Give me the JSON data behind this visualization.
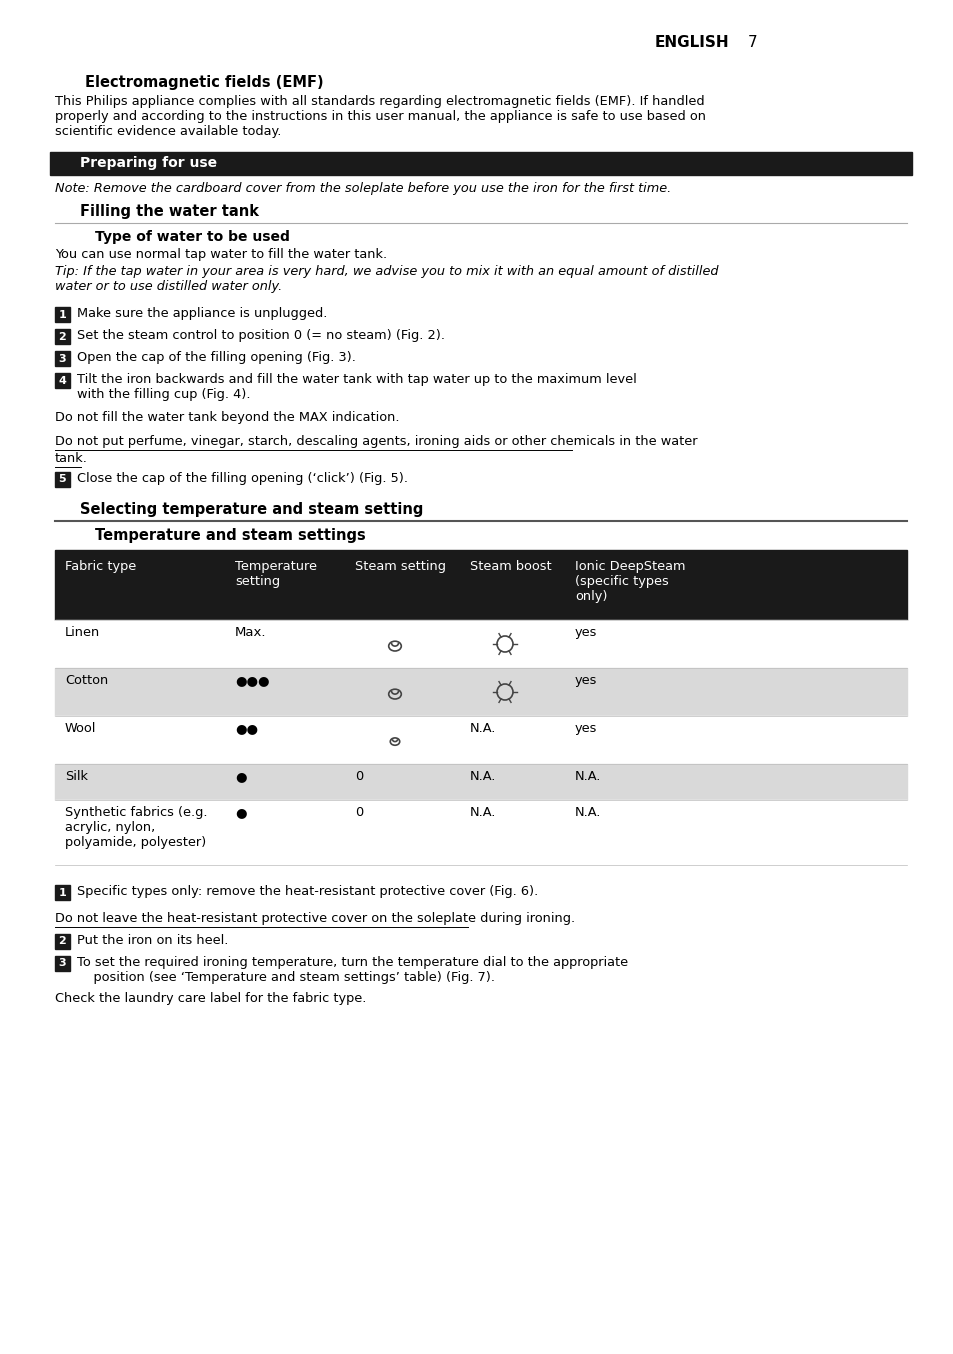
{
  "page_bg": "#ffffff",
  "header_text": "ENGLISH",
  "header_number": "7",
  "section1_title": "Electromagnetic fields (EMF)",
  "section1_body": "This Philips appliance complies with all standards regarding electromagnetic fields (EMF). If handled\nproperly and according to the instructions in this user manual, the appliance is safe to use based on\nscientific evidence available today.",
  "section2_header": "Preparing for use",
  "section2_header_bg": "#1a1a1a",
  "note_text": "Note: Remove the cardboard cover from the soleplate before you use the iron for the first time.",
  "subsection1": "Filling the water tank",
  "subsubsection1": "Type of water to be used",
  "water_body": "You can use normal tap water to fill the water tank.",
  "tip_text": "Tip: If the tap water in your area is very hard, we advise you to mix it with an equal amount of distilled\nwater or to use distilled water only.",
  "steps": [
    {
      "num": "1",
      "text": "Make sure the appliance is unplugged."
    },
    {
      "num": "2",
      "text": "Set the steam control to position 0 (= no steam) (Fig. 2)."
    },
    {
      "num": "3",
      "text": "Open the cap of the filling opening (Fig. 3)."
    },
    {
      "num": "4",
      "text": "Tilt the iron backwards and fill the water tank with tap water up to the maximum level\nwith the filling cup (Fig. 4).",
      "subtext": "Do not fill the water tank beyond the MAX indication."
    },
    {
      "num": "5",
      "text": "Close the cap of the filling opening (‘click’) (Fig. 5)."
    }
  ],
  "warning_text": "Do not put perfume, vinegar, starch, descaling agents, ironing aids or other chemicals in the water\ntank.",
  "subsection2": "Selecting temperature and steam setting",
  "subsubsection2": "Temperature and steam settings",
  "table_header_bg": "#1a1a1a",
  "table_header_fg": "#ffffff",
  "table_row_bg_alt": "#d9d9d9",
  "table_row_bg_normal": "#ffffff",
  "table_headers": [
    "Fabric type",
    "Temperature\nsetting",
    "Steam setting",
    "Steam boost",
    "Ionic DeepSteam\n(specific types\nonly)"
  ],
  "table_rows": [
    {
      "fabric": "Linen",
      "temp": "Max.",
      "steam": "icon_steam",
      "boost": "icon_boost",
      "ionic": "yes",
      "bg": "#ffffff"
    },
    {
      "fabric": "Cotton",
      "temp": "●●●",
      "steam": "icon_steam",
      "boost": "icon_boost",
      "ionic": "yes",
      "bg": "#d9d9d9"
    },
    {
      "fabric": "Wool",
      "temp": "●●",
      "steam": "icon_steam_sm",
      "boost": "N.A.",
      "ionic": "yes",
      "bg": "#ffffff"
    },
    {
      "fabric": "Silk",
      "temp": "●",
      "steam": "0",
      "boost": "N.A.",
      "ionic": "N.A.",
      "bg": "#d9d9d9"
    },
    {
      "fabric": "Synthetic fabrics (e.g.\nacrylic, nylon,\npolyamide, polyester)",
      "temp": "●",
      "steam": "0",
      "boost": "N.A.",
      "ionic": "N.A.",
      "bg": "#ffffff"
    }
  ],
  "after_steps": [
    {
      "num": "1",
      "text": "Specific types only: remove the heat-resistant protective cover (Fig. 6)."
    },
    {
      "num": "2",
      "text": "Put the iron on its heel."
    },
    {
      "num": "3",
      "text": "To set the required ironing temperature, turn the temperature dial to the appropriate\n    position (see ‘Temperature and steam settings’ table) (Fig. 7).",
      "subtext": "Check the laundry care label for the fabric type."
    }
  ],
  "warning2_text": "Do not leave the heat-resistant protective cover on the soleplate during ironing."
}
